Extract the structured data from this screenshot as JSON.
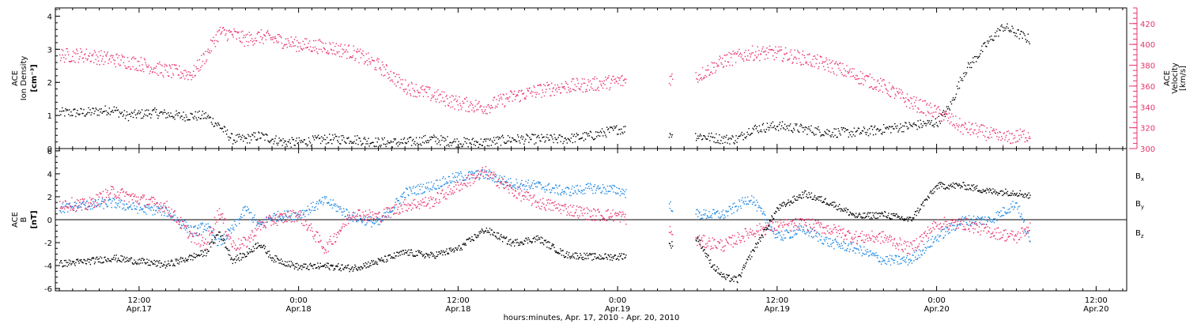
{
  "colors": {
    "black": "#000000",
    "velocity": "#e8336b",
    "by": "#1b86e3",
    "bz": "#e8336b"
  },
  "x_axis": {
    "title": "hours:minutes, Apr. 17, 2010 - Apr. 20, 2010",
    "ticks": [
      {
        "time": "12:00",
        "date": "Apr.17",
        "hours": 12
      },
      {
        "time": "0:00",
        "date": "Apr.18",
        "hours": 24
      },
      {
        "time": "12:00",
        "date": "Apr.18",
        "hours": 36
      },
      {
        "time": "0:00",
        "date": "Apr.19",
        "hours": 48
      },
      {
        "time": "12:00",
        "date": "Apr.19",
        "hours": 60
      },
      {
        "time": "0:00",
        "date": "Apr.20",
        "hours": 72
      },
      {
        "time": "12:00",
        "date": "Apr.20",
        "hours": 84
      }
    ]
  },
  "top_panel": {
    "left_title": [
      "ACE",
      "Ion Density"
    ],
    "left_unit": "[cm⁻³]",
    "right_title": [
      "ACE",
      "Velocity"
    ],
    "right_unit": "[km/s]"
  },
  "bottom_panel": {
    "left_title": [
      "ACE",
      "B"
    ],
    "left_unit": "[nT]",
    "legend": [
      {
        "name": "B",
        "sub": "x",
        "color_key": "black"
      },
      {
        "name": "B",
        "sub": "y",
        "color_key": "by"
      },
      {
        "name": "B",
        "sub": "z",
        "color_key": "bz"
      }
    ]
  },
  "chart_data": [
    {
      "type": "scatter",
      "title": "",
      "x_range_hours": [
        5.7,
        86.3
      ],
      "y_left": {
        "label": "ACE Ion Density [cm⁻³]",
        "ylim": [
          0,
          4.25
        ],
        "ticks": [
          0,
          1,
          2,
          3,
          4
        ]
      },
      "y_right": {
        "label": "ACE Velocity [km/s]",
        "ylim": [
          300,
          435
        ],
        "ticks": [
          300,
          320,
          340,
          360,
          380,
          400,
          420
        ]
      },
      "data_gaps_hours": [
        [
          48.6,
          51.8
        ],
        [
          52.1,
          53.8
        ]
      ],
      "series": [
        {
          "name": "Ion Density",
          "color_key": "black",
          "x": [
            6,
            8,
            10,
            11,
            13,
            15,
            17,
            18,
            19,
            20,
            21,
            22,
            23,
            24,
            26,
            28,
            30,
            32,
            34,
            36,
            38,
            40,
            42,
            44,
            46,
            48,
            54,
            56,
            57,
            58,
            60,
            62,
            64,
            66,
            68,
            70,
            72,
            73,
            74,
            75,
            76,
            77,
            78,
            79
          ],
          "values": [
            1.1,
            1.1,
            1.2,
            1.0,
            1.1,
            1.0,
            1.0,
            0.7,
            0.3,
            0.3,
            0.4,
            0.3,
            0.2,
            0.2,
            0.3,
            0.3,
            0.2,
            0.2,
            0.3,
            0.2,
            0.2,
            0.3,
            0.3,
            0.3,
            0.4,
            0.6,
            0.4,
            0.3,
            0.3,
            0.6,
            0.7,
            0.6,
            0.5,
            0.5,
            0.6,
            0.7,
            0.8,
            1.3,
            2.3,
            2.8,
            3.3,
            3.7,
            3.5,
            3.3
          ]
        },
        {
          "name": "Velocity",
          "color_key": "velocity",
          "x": [
            6,
            8,
            10,
            12,
            14,
            16,
            17,
            18,
            19,
            20,
            21,
            22,
            24,
            26,
            28,
            30,
            32,
            34,
            36,
            38,
            40,
            42,
            44,
            46,
            48,
            54,
            56,
            58,
            60,
            62,
            64,
            66,
            68,
            70,
            72,
            73,
            74,
            75,
            76,
            77,
            78,
            79
          ],
          "values": [
            390,
            390,
            386,
            382,
            375,
            372,
            390,
            412,
            410,
            405,
            408,
            406,
            400,
            398,
            393,
            380,
            360,
            352,
            344,
            340,
            350,
            356,
            360,
            362,
            365,
            370,
            385,
            392,
            392,
            387,
            380,
            370,
            360,
            345,
            335,
            328,
            320,
            318,
            314,
            310,
            312,
            314
          ]
        }
      ]
    },
    {
      "type": "scatter",
      "title": "",
      "x_range_hours": [
        5.7,
        86.3
      ],
      "y_left": {
        "label": "ACE B [nT]",
        "ylim": [
          -6.2,
          6.2
        ],
        "ticks": [
          -6,
          -4,
          -2,
          0,
          2,
          4,
          6
        ]
      },
      "zero_line": true,
      "data_gaps_hours": [
        [
          48.6,
          51.8
        ],
        [
          52.1,
          53.8
        ]
      ],
      "series": [
        {
          "name": "Bx",
          "color_key": "black",
          "x": [
            6,
            8,
            10,
            12,
            14,
            16,
            17,
            18,
            19,
            20,
            21,
            22,
            24,
            26,
            28,
            30,
            32,
            34,
            36,
            38,
            40,
            42,
            44,
            46,
            48,
            54,
            55,
            56,
            57,
            58,
            60,
            62,
            64,
            66,
            68,
            70,
            72,
            74,
            76,
            78,
            79
          ],
          "values": [
            -3.8,
            -3.6,
            -3.3,
            -3.6,
            -3.9,
            -3.2,
            -2.8,
            -1.0,
            -3.5,
            -3.0,
            -2.0,
            -3.3,
            -4.1,
            -4.0,
            -4.2,
            -3.6,
            -2.8,
            -3.1,
            -2.5,
            -0.8,
            -2.0,
            -1.6,
            -3.0,
            -3.2,
            -3.2,
            -1.6,
            -3.8,
            -5.0,
            -5.2,
            -3.0,
            1.0,
            2.3,
            1.5,
            0.3,
            0.5,
            0.0,
            3.0,
            3.0,
            2.5,
            2.4,
            2.1
          ]
        },
        {
          "name": "By",
          "color_key": "by",
          "x": [
            6,
            8,
            10,
            12,
            14,
            16,
            17,
            18,
            19,
            20,
            21,
            22,
            24,
            26,
            28,
            30,
            32,
            34,
            36,
            38,
            40,
            42,
            44,
            46,
            48,
            54,
            56,
            58,
            60,
            62,
            64,
            66,
            68,
            70,
            72,
            74,
            76,
            78,
            79
          ],
          "values": [
            1.0,
            1.3,
            1.5,
            1.0,
            0.8,
            -1.0,
            -0.5,
            -2.0,
            -0.8,
            1.0,
            -0.5,
            0.3,
            0.5,
            1.7,
            0.3,
            -0.3,
            2.4,
            3.0,
            3.8,
            4.0,
            3.2,
            3.0,
            2.5,
            2.8,
            2.6,
            0.5,
            0.5,
            2.0,
            -1.5,
            -0.8,
            -2.0,
            -2.5,
            -3.5,
            -3.5,
            -1.5,
            0.0,
            0.0,
            1.5,
            -2.0
          ]
        },
        {
          "name": "Bz",
          "color_key": "bz",
          "x": [
            6,
            8,
            10,
            12,
            14,
            16,
            17,
            18,
            19,
            20,
            21,
            22,
            24,
            26,
            28,
            30,
            32,
            34,
            36,
            38,
            40,
            42,
            44,
            46,
            48,
            54,
            56,
            58,
            60,
            62,
            64,
            66,
            68,
            70,
            72,
            74,
            76,
            78,
            79
          ],
          "values": [
            1.5,
            1.3,
            2.5,
            1.8,
            1.2,
            -1.5,
            -2.0,
            0.8,
            -2.2,
            -2.0,
            -0.5,
            0.0,
            0.5,
            -2.5,
            0.6,
            0.3,
            1.3,
            1.6,
            3.0,
            4.2,
            2.6,
            1.5,
            1.0,
            0.5,
            0.4,
            -1.8,
            -2.2,
            -1.0,
            -0.5,
            -0.3,
            -0.8,
            -1.5,
            -1.5,
            -2.5,
            -0.3,
            -0.3,
            -1.0,
            -1.5,
            -0.5
          ]
        }
      ]
    }
  ]
}
